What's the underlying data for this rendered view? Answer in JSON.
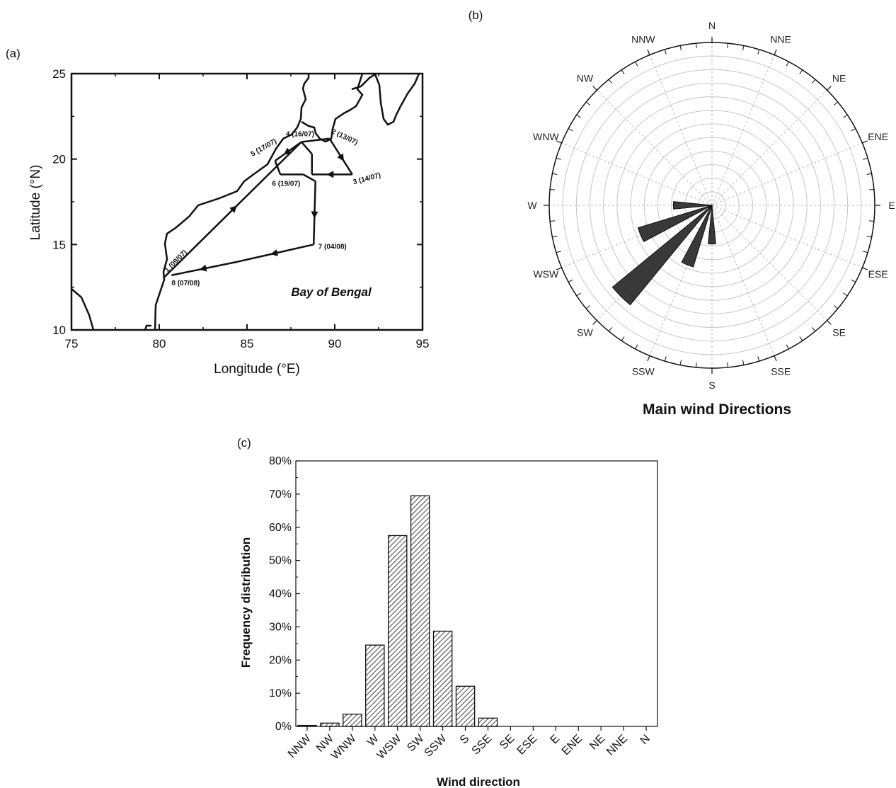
{
  "chart_data": [
    {
      "panel": "(a)",
      "type": "scatter",
      "xlabel": "Longitude (°E)",
      "ylabel": "Latitude (°N)",
      "xlim": [
        75,
        95
      ],
      "ylim": [
        10,
        25
      ],
      "xticks": [
        "75",
        "80",
        "85",
        "90",
        "95"
      ],
      "yticks": [
        "10",
        "15",
        "20",
        "25"
      ],
      "annotation": "Bay of Bengal",
      "stations": [
        {
          "label": "1 (09/07)",
          "lon": 80.3,
          "lat": 13.1
        },
        {
          "label": "2 (13/07)",
          "lon": 89.7,
          "lat": 21.2
        },
        {
          "label": "3 (14/07)",
          "lon": 91.0,
          "lat": 19.1
        },
        {
          "label": "4 (16/07)",
          "lon": 88.1,
          "lat": 21.0
        },
        {
          "label": "5 (17/07)",
          "lon": 86.6,
          "lat": 19.9
        },
        {
          "label": "6 (19/07)",
          "lon": 88.2,
          "lat": 19.1
        },
        {
          "label": "7 (04/08)",
          "lon": 88.9,
          "lat": 15.0
        },
        {
          "label": "8 (07/08)",
          "lon": 80.7,
          "lat": 13.2
        }
      ],
      "track": [
        [
          80.3,
          13.1
        ],
        [
          88.1,
          21.0
        ],
        [
          89.7,
          21.2
        ],
        [
          91.0,
          19.1
        ],
        [
          88.7,
          19.1
        ],
        [
          88.7,
          20.3
        ],
        [
          88.1,
          21.0
        ],
        [
          86.6,
          19.9
        ],
        [
          86.9,
          19.1
        ],
        [
          88.2,
          19.1
        ],
        [
          88.9,
          18.7
        ],
        [
          88.8,
          15.0
        ],
        [
          84.5,
          14.0
        ],
        [
          80.7,
          13.2
        ]
      ]
    },
    {
      "panel": "(b)",
      "type": "rose",
      "title": "Main wind Directions",
      "directions": [
        "N",
        "NNE",
        "NE",
        "ENE",
        "E",
        "ESE",
        "SE",
        "SSE",
        "S",
        "SSW",
        "SW",
        "WSW",
        "W",
        "WNW",
        "NW",
        "NNW"
      ],
      "values": [
        0,
        0,
        0,
        0,
        0,
        0,
        0,
        0,
        3,
        5,
        10,
        6,
        3,
        0,
        0,
        0
      ]
    },
    {
      "panel": "(c)",
      "type": "bar",
      "xlabel": "Wind direction",
      "ylabel": "Frequency distribution",
      "ylim": [
        0,
        80
      ],
      "yticks": [
        "0%",
        "10%",
        "20%",
        "30%",
        "40%",
        "50%",
        "60%",
        "70%",
        "80%"
      ],
      "categories": [
        "NNW",
        "NW",
        "WNW",
        "W",
        "WSW",
        "SW",
        "SSW",
        "S",
        "SSE",
        "SE",
        "ESE",
        "E",
        "ENE",
        "NE",
        "NNE",
        "N"
      ],
      "values": [
        0.3,
        1.0,
        3.7,
        24.5,
        57.5,
        69.5,
        28.7,
        12.1,
        2.5,
        0,
        0,
        0,
        0,
        0,
        0,
        0
      ]
    }
  ]
}
